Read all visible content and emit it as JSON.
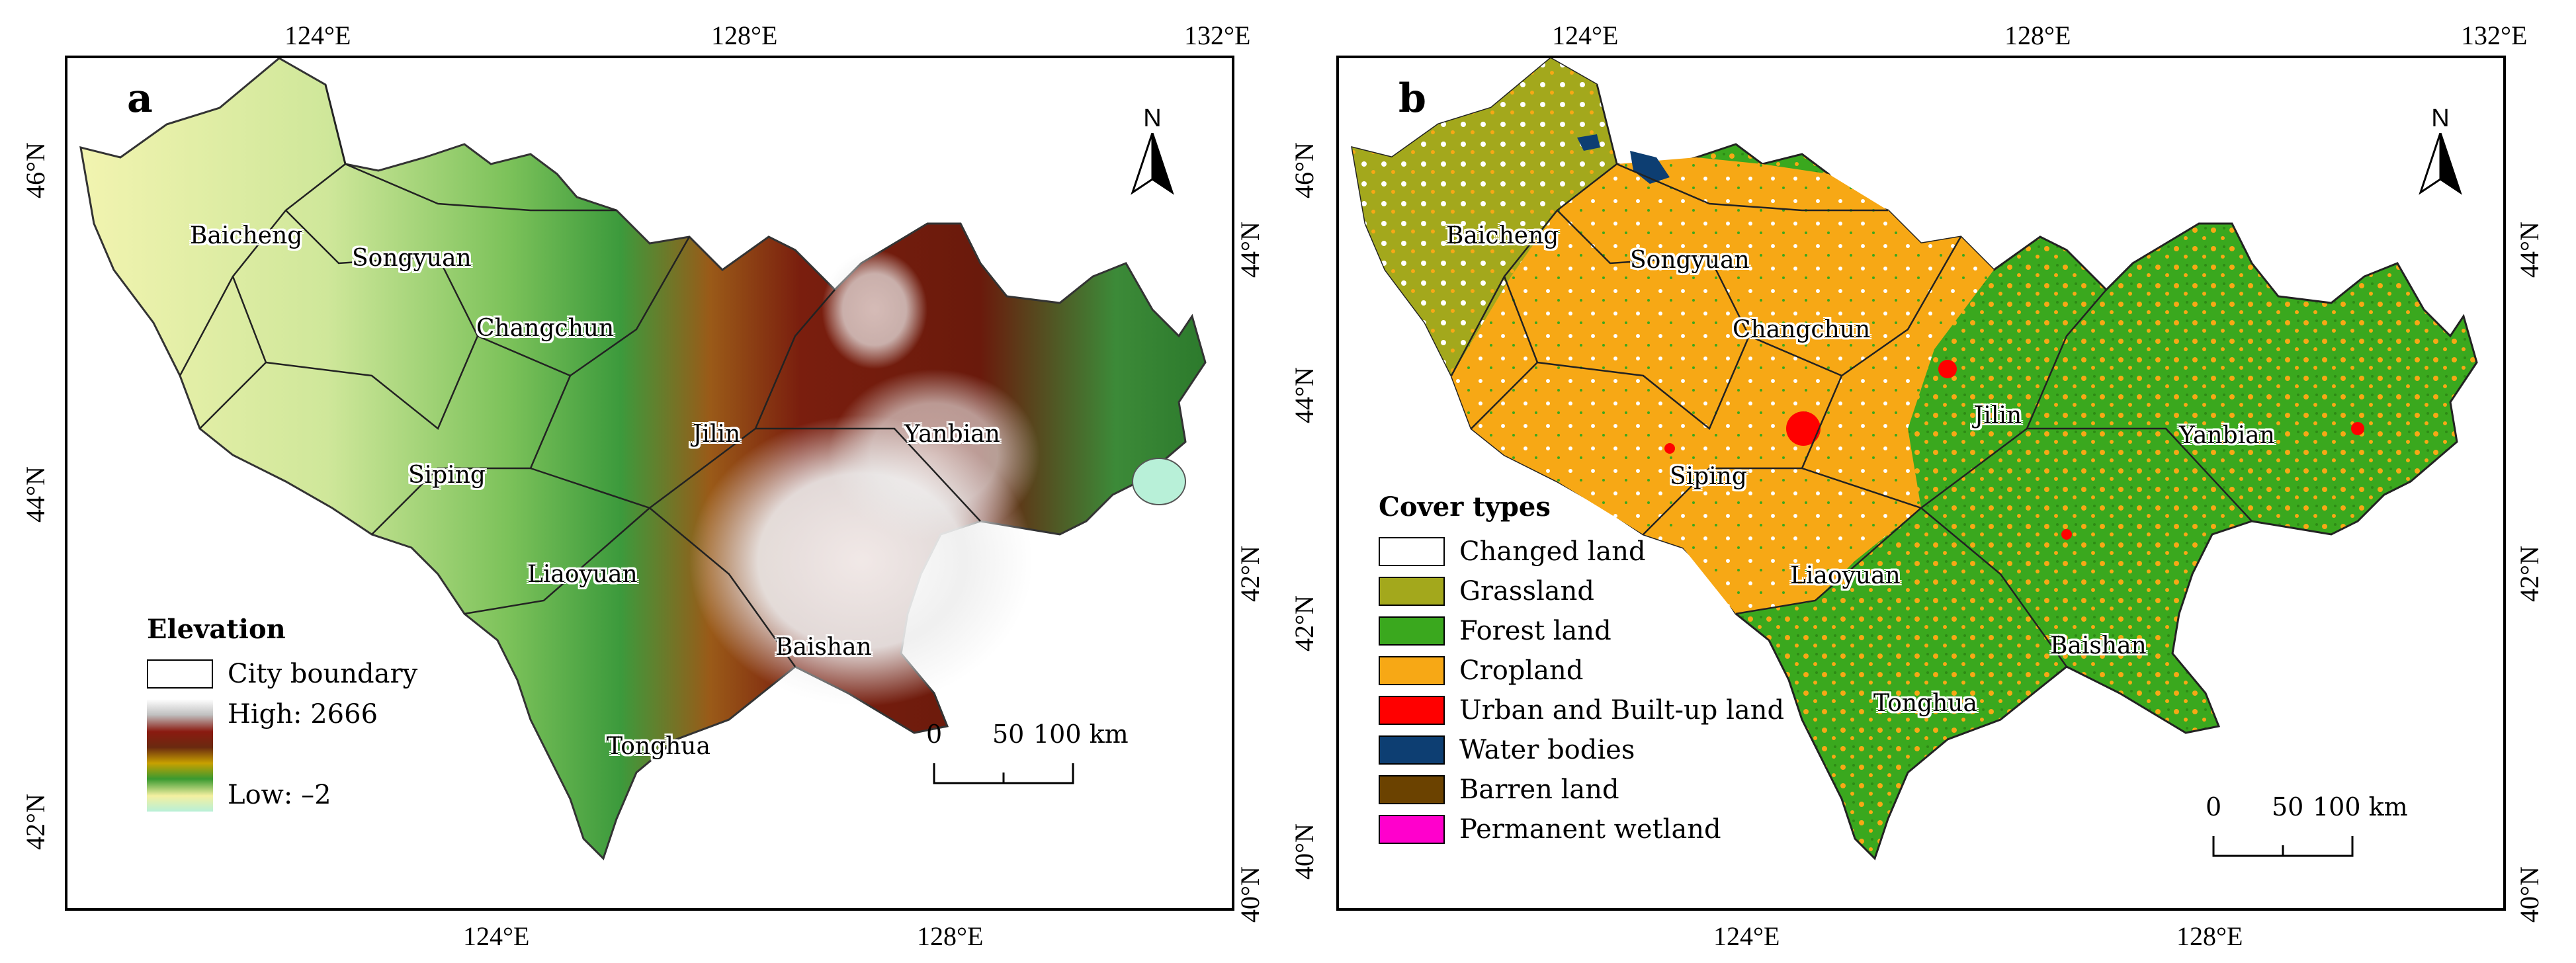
{
  "panel_a": {
    "label": "a",
    "top_lon_ticks": [
      "124°E",
      "128°E",
      "132°E"
    ],
    "bottom_lon_ticks": [
      "124°E",
      "128°E"
    ],
    "left_lat_ticks": [
      "46°N",
      "44°N",
      "42°N"
    ],
    "right_lat_ticks": [
      "44°N",
      "42°N",
      "40°N"
    ],
    "north_label": "N",
    "cities": [
      "Baicheng",
      "Songyuan",
      "Changchun",
      "Jilin",
      "Yanbian",
      "Siping",
      "Liaoyuan",
      "Baishan",
      "Tonghua"
    ],
    "legend": {
      "title": "Elevation",
      "boundary_label": "City boundary",
      "high_label": "High: 2666",
      "low_label": "Low: –2",
      "ramp_colors": [
        "#ffffff",
        "#c0c0c0",
        "#8a1a10",
        "#6a2a10",
        "#c8a000",
        "#3a9a30",
        "#f4f0a0",
        "#b8f0d8"
      ]
    },
    "scale": {
      "labels": [
        "0",
        "50",
        "100 km"
      ]
    }
  },
  "panel_b": {
    "label": "b",
    "top_lon_ticks": [
      "124°E",
      "128°E",
      "132°E"
    ],
    "bottom_lon_ticks": [
      "124°E",
      "128°E"
    ],
    "left_lat_ticks": [
      "46°N",
      "44°N",
      "42°N",
      "40°N"
    ],
    "right_lat_ticks": [
      "44°N",
      "42°N",
      "40°N"
    ],
    "north_label": "N",
    "cities": [
      "Baicheng",
      "Songyuan",
      "Changchun",
      "Jilin",
      "Yanbian",
      "Siping",
      "Liaoyuan",
      "Baishan",
      "Tonghua"
    ],
    "legend": {
      "title": "Cover types",
      "items": [
        {
          "label": "Changed land",
          "color": "#ffffff"
        },
        {
          "label": "Grassland",
          "color": "#a3a81c"
        },
        {
          "label": "Forest land",
          "color": "#3aa81e"
        },
        {
          "label": "Cropland",
          "color": "#f7a815"
        },
        {
          "label": "Urban and Built-up land",
          "color": "#ff0000"
        },
        {
          "label": "Water bodies",
          "color": "#0d3e72"
        },
        {
          "label": "Barren land",
          "color": "#6b4200"
        },
        {
          "label": "Permanent wetland",
          "color": "#ff00cc"
        }
      ]
    },
    "scale": {
      "labels": [
        "0",
        "50",
        "100 km"
      ]
    }
  },
  "colors": {
    "elev_low": "#a8d870",
    "elev_mid": "#3c9a3c",
    "elev_high": "#7a1e0e",
    "elev_peak": "#ffffff",
    "grassland": "#a3a81c",
    "forest": "#3aa81e",
    "cropland": "#f7a815"
  }
}
